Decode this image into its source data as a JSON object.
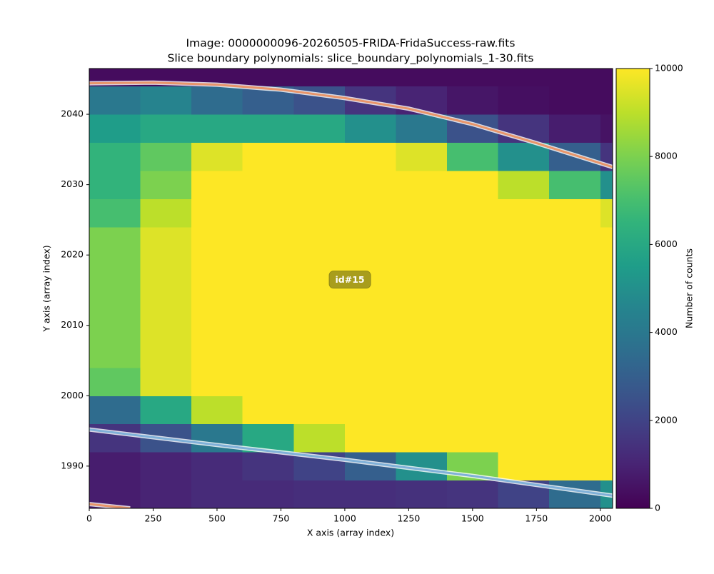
{
  "chart_data": {
    "type": "heatmap",
    "title": "Image: 0000000096-20260505-FRIDA-FridaSuccess-raw.fits",
    "subtitle": "Slice boundary polynomials: slice_boundary_polynomials_1-30.fits",
    "xlabel": "X axis (array index)",
    "ylabel": "Y axis (array index)",
    "xlim": [
      0,
      2048
    ],
    "ylim": [
      1984,
      2046.5
    ],
    "xticks": [
      0,
      250,
      500,
      750,
      1000,
      1250,
      1500,
      1750,
      2000
    ],
    "yticks": [
      1990,
      2000,
      2010,
      2020,
      2030,
      2040
    ],
    "colormap": "viridis",
    "clim": [
      0,
      10000
    ],
    "cticks": [
      0,
      2000,
      4000,
      6000,
      8000,
      10000
    ],
    "colorbar_label": "Number of counts",
    "x_edges": [
      0,
      200,
      400,
      600,
      800,
      1000,
      1200,
      1400,
      1600,
      1800,
      2000,
      2048
    ],
    "y_edges": [
      1984,
      1988,
      1992,
      1996,
      2000,
      2004,
      2008,
      2012,
      2016,
      2020,
      2024,
      2028,
      2032,
      2036,
      2040,
      2044,
      2046.5
    ],
    "values": [
      [
        800,
        1000,
        1200,
        1200,
        1300,
        1300,
        1400,
        1500,
        2000,
        3500,
        5000
      ],
      [
        800,
        1000,
        1200,
        1500,
        2000,
        3000,
        5000,
        8000,
        10000,
        10000,
        10000
      ],
      [
        1500,
        2500,
        4000,
        6000,
        9000,
        10000,
        10000,
        10000,
        10000,
        10000,
        10000
      ],
      [
        3500,
        6000,
        9000,
        10000,
        10000,
        10000,
        10000,
        10000,
        10000,
        10000,
        10000
      ],
      [
        7500,
        9500,
        10000,
        10000,
        10000,
        10000,
        10000,
        10000,
        10000,
        10000,
        10000
      ],
      [
        8000,
        9500,
        10000,
        10000,
        10000,
        10000,
        10000,
        10000,
        10000,
        10000,
        10000
      ],
      [
        8000,
        9500,
        10000,
        10000,
        10000,
        10000,
        10000,
        10000,
        10000,
        10000,
        10000
      ],
      [
        8000,
        9500,
        10000,
        10000,
        10000,
        10000,
        10000,
        10000,
        10000,
        10000,
        10000
      ],
      [
        8000,
        9500,
        10000,
        10000,
        10000,
        10000,
        10000,
        10000,
        10000,
        10000,
        10000
      ],
      [
        8000,
        9500,
        10000,
        10000,
        10000,
        10000,
        10000,
        10000,
        10000,
        10000,
        10000
      ],
      [
        7000,
        9000,
        10000,
        10000,
        10000,
        10000,
        10000,
        10000,
        10000,
        10000,
        9500
      ],
      [
        6500,
        8000,
        10000,
        10000,
        10000,
        10000,
        10000,
        10000,
        9000,
        7000,
        5000
      ],
      [
        6500,
        7500,
        9500,
        10000,
        10000,
        10000,
        9500,
        7000,
        5000,
        3000,
        1500
      ],
      [
        5500,
        6000,
        6000,
        6000,
        6000,
        5000,
        4000,
        2500,
        1500,
        800,
        500
      ],
      [
        4000,
        4500,
        3500,
        3000,
        2500,
        1500,
        1000,
        600,
        400,
        300,
        300
      ],
      [
        300,
        300,
        300,
        300,
        300,
        300,
        300,
        300,
        300,
        300,
        300
      ]
    ],
    "curves": [
      {
        "color": "#e8956a",
        "x": [
          0,
          250,
          500,
          750,
          1000,
          1250,
          1500,
          1750,
          2048
        ],
        "y": [
          2044.4,
          2044.5,
          2044.2,
          2043.5,
          2042.3,
          2040.8,
          2038.6,
          2035.9,
          2032.5
        ]
      },
      {
        "color": "#7fb0d8",
        "x": [
          0,
          500,
          1000,
          1500,
          2048
        ],
        "y": [
          1995.2,
          1993.0,
          1990.9,
          1988.6,
          1985.8
        ]
      },
      {
        "color": "#e8956a",
        "x": [
          0,
          160
        ],
        "y": [
          1984.6,
          1984.0
        ]
      }
    ],
    "annotations": [
      {
        "text": "id#15",
        "x": 1020,
        "y": 2016.5
      }
    ]
  }
}
